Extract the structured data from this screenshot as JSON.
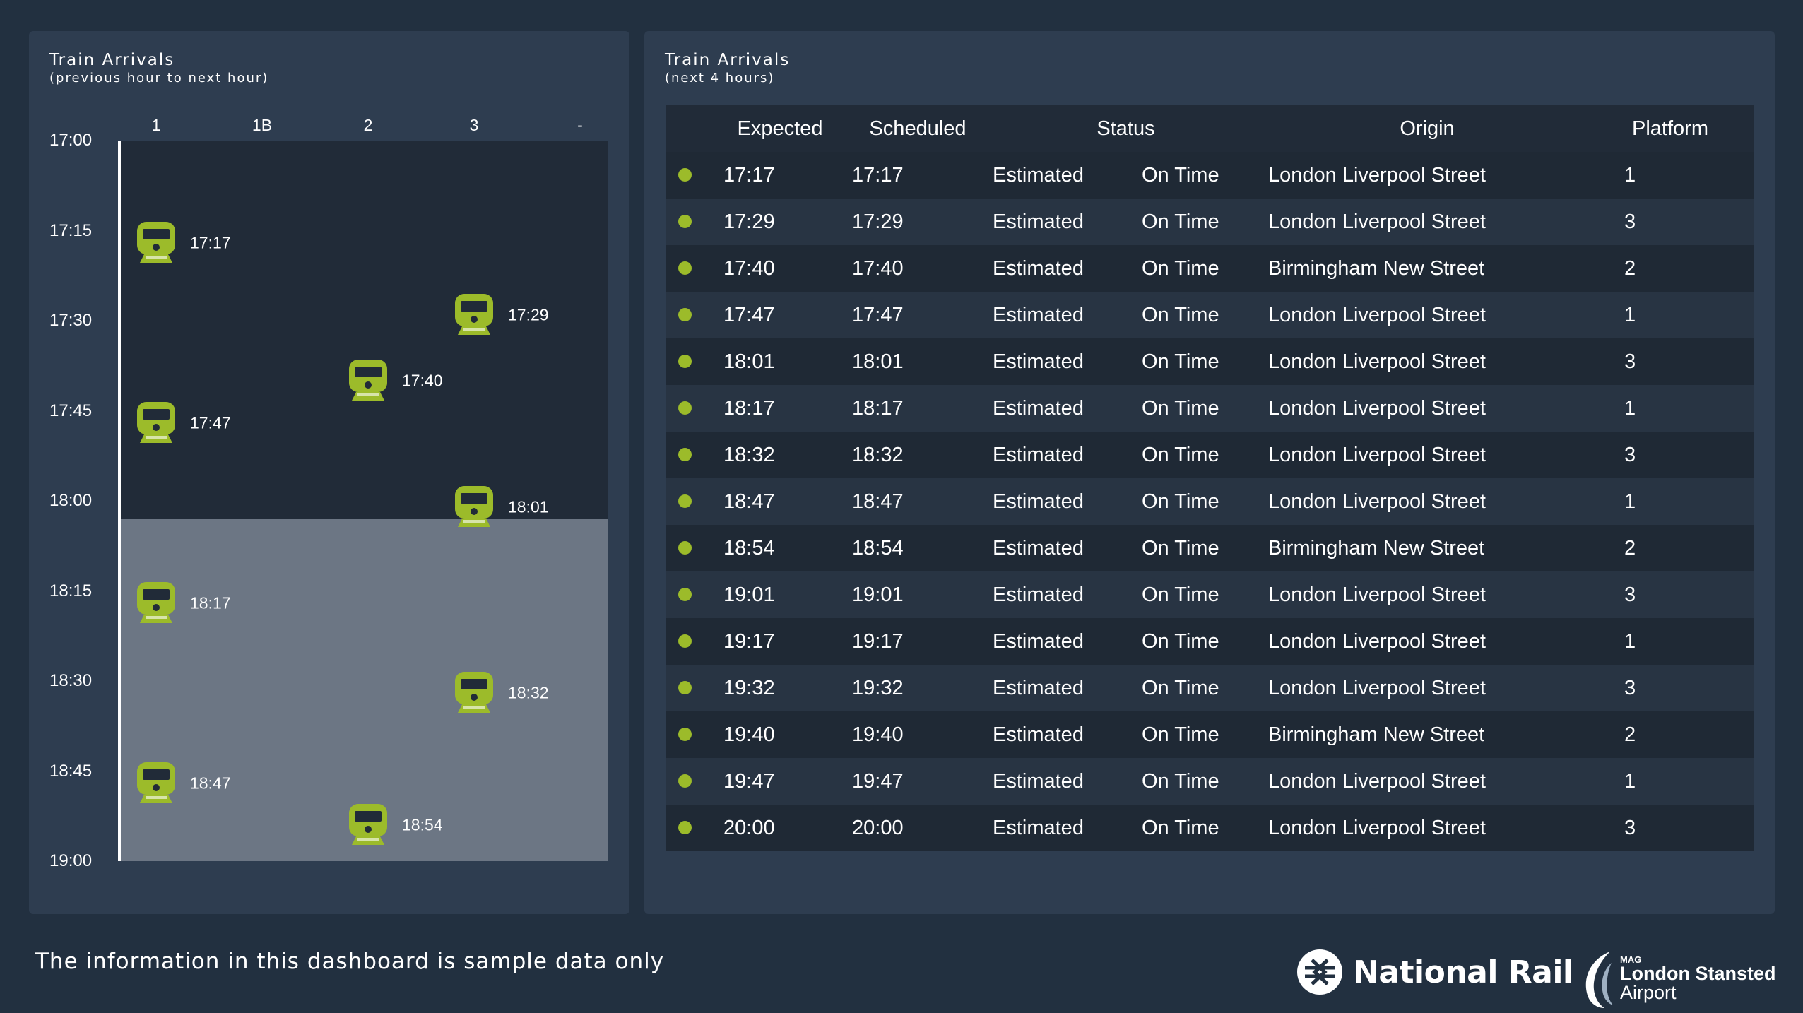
{
  "colors": {
    "background": "#223040",
    "panel": "#2e3d50",
    "plot_past": "#212b38",
    "plot_future": "#6c7684",
    "accent": "#9cbb2a"
  },
  "timeline": {
    "title": "Train Arrivals",
    "subtitle": "(previous hour to next hour)",
    "columns": [
      "1",
      "1B",
      "2",
      "3",
      "-"
    ],
    "time_labels": [
      "17:00",
      "17:15",
      "17:30",
      "17:45",
      "18:00",
      "18:15",
      "18:30",
      "18:45",
      "19:00"
    ],
    "range_start_min": 0,
    "range_end_min": 120,
    "now_min": 63,
    "trains": [
      {
        "time": "17:17",
        "platform": "1",
        "icon": "train-icon"
      },
      {
        "time": "17:29",
        "platform": "3",
        "icon": "train-icon"
      },
      {
        "time": "17:40",
        "platform": "2",
        "icon": "train-icon"
      },
      {
        "time": "17:47",
        "platform": "1",
        "icon": "train-icon"
      },
      {
        "time": "18:01",
        "platform": "3",
        "icon": "train-icon"
      },
      {
        "time": "18:17",
        "platform": "1",
        "icon": "train-icon"
      },
      {
        "time": "18:32",
        "platform": "3",
        "icon": "train-icon"
      },
      {
        "time": "18:47",
        "platform": "1",
        "icon": "train-icon"
      },
      {
        "time": "18:54",
        "platform": "2",
        "icon": "train-icon"
      }
    ]
  },
  "table": {
    "title": "Train Arrivals",
    "subtitle": "(next 4 hours)",
    "headers": {
      "expected": "Expected",
      "scheduled": "Scheduled",
      "status": "Status",
      "origin": "Origin",
      "platform": "Platform"
    },
    "rows": [
      {
        "expected": "17:17",
        "scheduled": "17:17",
        "status_type": "Estimated",
        "status": "On Time",
        "origin": "London Liverpool Street",
        "platform": "1"
      },
      {
        "expected": "17:29",
        "scheduled": "17:29",
        "status_type": "Estimated",
        "status": "On Time",
        "origin": "London Liverpool Street",
        "platform": "3"
      },
      {
        "expected": "17:40",
        "scheduled": "17:40",
        "status_type": "Estimated",
        "status": "On Time",
        "origin": "Birmingham New Street",
        "platform": "2"
      },
      {
        "expected": "17:47",
        "scheduled": "17:47",
        "status_type": "Estimated",
        "status": "On Time",
        "origin": "London Liverpool Street",
        "platform": "1"
      },
      {
        "expected": "18:01",
        "scheduled": "18:01",
        "status_type": "Estimated",
        "status": "On Time",
        "origin": "London Liverpool Street",
        "platform": "3"
      },
      {
        "expected": "18:17",
        "scheduled": "18:17",
        "status_type": "Estimated",
        "status": "On Time",
        "origin": "London Liverpool Street",
        "platform": "1"
      },
      {
        "expected": "18:32",
        "scheduled": "18:32",
        "status_type": "Estimated",
        "status": "On Time",
        "origin": "London Liverpool Street",
        "platform": "3"
      },
      {
        "expected": "18:47",
        "scheduled": "18:47",
        "status_type": "Estimated",
        "status": "On Time",
        "origin": "London Liverpool Street",
        "platform": "1"
      },
      {
        "expected": "18:54",
        "scheduled": "18:54",
        "status_type": "Estimated",
        "status": "On Time",
        "origin": "Birmingham New Street",
        "platform": "2"
      },
      {
        "expected": "19:01",
        "scheduled": "19:01",
        "status_type": "Estimated",
        "status": "On Time",
        "origin": "London Liverpool Street",
        "platform": "3"
      },
      {
        "expected": "19:17",
        "scheduled": "19:17",
        "status_type": "Estimated",
        "status": "On Time",
        "origin": "London Liverpool Street",
        "platform": "1"
      },
      {
        "expected": "19:32",
        "scheduled": "19:32",
        "status_type": "Estimated",
        "status": "On Time",
        "origin": "London Liverpool Street",
        "platform": "3"
      },
      {
        "expected": "19:40",
        "scheduled": "19:40",
        "status_type": "Estimated",
        "status": "On Time",
        "origin": "Birmingham New Street",
        "platform": "2"
      },
      {
        "expected": "19:47",
        "scheduled": "19:47",
        "status_type": "Estimated",
        "status": "On Time",
        "origin": "London Liverpool Street",
        "platform": "1"
      },
      {
        "expected": "20:00",
        "scheduled": "20:00",
        "status_type": "Estimated",
        "status": "On Time",
        "origin": "London Liverpool Street",
        "platform": "3"
      }
    ]
  },
  "footer": {
    "disclaimer": "The information in this dashboard is sample data only",
    "national_rail": "National Rail",
    "national_rail_icon": "national-rail-logo-icon",
    "stansted_mag": "MAG",
    "stansted_name": "London Stansted",
    "stansted_airport": "Airport",
    "stansted_icon": "stansted-logo-icon"
  }
}
